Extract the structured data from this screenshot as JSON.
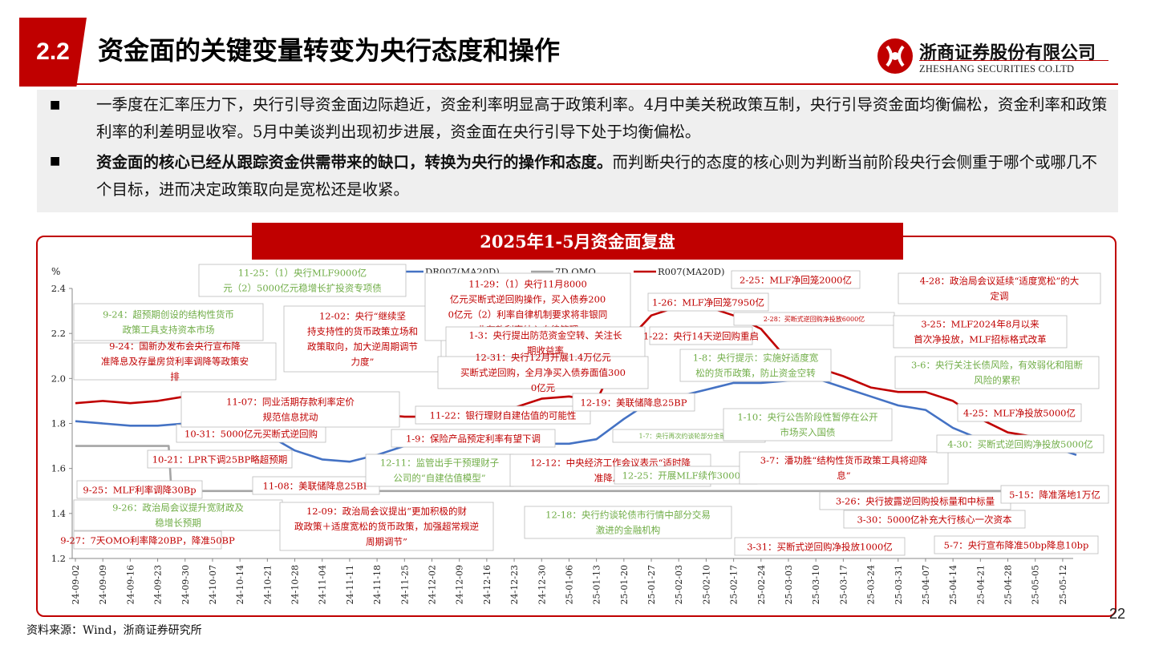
{
  "header": {
    "section_num": "2.2",
    "title": "资金面的关键变量转变为央行态度和操作"
  },
  "logo": {
    "cn": "浙商证券股份有限公司",
    "en": "ZHESHANG SECURITIES CO.LTD"
  },
  "bullets": [
    {
      "bold": "",
      "text": "一季度在汇率压力下，央行引导资金面边际趋近，资金利率明显高于政策利率。4月中美关税政策互制，央行引导资金面均衡偏松，资金利率和政策利率的利差明显收窄。5月中美谈判出现初步进展，资金面在央行引导下处于均衡偏松。"
    },
    {
      "bold": "资金面的核心已经从跟踪资金供需带来的缺口，转换为央行的操作和态度。",
      "text": "而判断央行的态度的核心则为判断当前阶段央行会侧重于哪个或哪几不个目标，进而决定政策取向是宽松还是收紧。"
    }
  ],
  "chart_title": "2025年1-5月资金面复盘",
  "colors": {
    "brand": "#c00000",
    "dr007": "#4472c4",
    "omo": "#a5a5a5",
    "r007": "#c00000",
    "green_text": "#70ad47"
  },
  "chart_data": {
    "type": "line",
    "ylabel": "%",
    "ylim": [
      1.2,
      2.4
    ],
    "yticks": [
      "1.2",
      "1.4",
      "1.6",
      "1.8",
      "2.0",
      "2.2",
      "2.4"
    ],
    "x_ticks": [
      "24-09-02",
      "24-09-09",
      "24-09-16",
      "24-09-23",
      "24-09-30",
      "24-10-07",
      "24-10-14",
      "24-10-21",
      "24-10-28",
      "24-11-04",
      "24-11-11",
      "24-11-18",
      "24-11-25",
      "24-12-02",
      "24-12-09",
      "24-12-16",
      "24-12-23",
      "24-12-30",
      "25-01-06",
      "25-01-13",
      "25-01-20",
      "25-01-27",
      "25-02-03",
      "25-02-10",
      "25-02-17",
      "25-02-24",
      "25-03-03",
      "25-03-10",
      "25-03-17",
      "25-03-24",
      "25-03-31",
      "25-04-07",
      "25-04-14",
      "25-04-21",
      "25-04-28",
      "25-05-05",
      "25-05-12"
    ],
    "legend": [
      "DR007(MA20D)",
      "7D OMO",
      "R007(MA20D)"
    ],
    "series": [
      {
        "name": "DR007(MA20D)",
        "points": [
          [
            0,
            1.81
          ],
          [
            1,
            1.8
          ],
          [
            2,
            1.79
          ],
          [
            3,
            1.79
          ],
          [
            4,
            1.8
          ],
          [
            5,
            1.81
          ],
          [
            6,
            1.8
          ],
          [
            7,
            1.75
          ],
          [
            8,
            1.68
          ],
          [
            9,
            1.64
          ],
          [
            10,
            1.63
          ],
          [
            11,
            1.66
          ],
          [
            12,
            1.7
          ],
          [
            13,
            1.73
          ],
          [
            14,
            1.73
          ],
          [
            15,
            1.72
          ],
          [
            16,
            1.7
          ],
          [
            17,
            1.71
          ],
          [
            18,
            1.71
          ],
          [
            19,
            1.73
          ],
          [
            20,
            1.82
          ],
          [
            21,
            1.9
          ],
          [
            22,
            1.92
          ],
          [
            23,
            1.95
          ],
          [
            24,
            1.98
          ],
          [
            25,
            1.98
          ],
          [
            26,
            1.99
          ],
          [
            27,
            2.0
          ],
          [
            28,
            1.96
          ],
          [
            29,
            1.92
          ],
          [
            30,
            1.88
          ],
          [
            31,
            1.86
          ],
          [
            32,
            1.78
          ],
          [
            33,
            1.73
          ],
          [
            34,
            1.72
          ],
          [
            35,
            1.7
          ],
          [
            36,
            1.68
          ],
          [
            36.5,
            1.66
          ]
        ]
      },
      {
        "name": "7D OMO",
        "points": [
          [
            0,
            1.7
          ],
          [
            3.4,
            1.7
          ],
          [
            3.5,
            1.5
          ],
          [
            36.9,
            1.5
          ]
        ]
      },
      {
        "name": "R007(MA20D)",
        "points": [
          [
            0,
            1.89
          ],
          [
            1,
            1.9
          ],
          [
            2,
            1.89
          ],
          [
            3,
            1.9
          ],
          [
            4,
            1.92
          ],
          [
            5,
            1.93
          ],
          [
            6,
            1.92
          ],
          [
            7,
            1.87
          ],
          [
            8,
            1.85
          ],
          [
            9,
            1.84
          ],
          [
            10,
            1.84
          ],
          [
            11,
            1.84
          ],
          [
            12,
            1.83
          ],
          [
            13,
            1.83
          ],
          [
            14,
            1.85
          ],
          [
            15,
            1.86
          ],
          [
            16,
            1.87
          ],
          [
            17,
            1.91
          ],
          [
            18,
            1.92
          ],
          [
            19,
            1.9
          ],
          [
            20,
            2.15
          ],
          [
            21,
            2.28
          ],
          [
            22,
            2.32
          ],
          [
            23,
            2.32
          ],
          [
            24,
            2.28
          ],
          [
            25,
            2.22
          ],
          [
            26,
            2.08
          ],
          [
            27,
            2.05
          ],
          [
            28,
            2.01
          ],
          [
            29,
            1.96
          ],
          [
            30,
            1.94
          ],
          [
            31,
            1.94
          ],
          [
            32,
            1.9
          ],
          [
            33,
            1.82
          ],
          [
            34,
            1.76
          ],
          [
            35,
            1.74
          ],
          [
            36,
            1.72
          ],
          [
            36.8,
            1.68
          ]
        ]
      }
    ],
    "annotations": [
      {
        "text": "9-24：超预期创设的结构性货币政策工具支持资本市场",
        "color": "#70ad47"
      },
      {
        "text": "9-24：国新办发布会央行宣布降准降息及存量房贷利率调降等政策安排",
        "color": "#c00000"
      },
      {
        "text": "9-25：MLF利率调降30Bp",
        "color": "#c00000"
      },
      {
        "text": "9-26：政治局会议提升宽财政及稳增长预期",
        "color": "#70ad47"
      },
      {
        "text": "9-27：7天OMO利率降20BP，降准50BP",
        "color": "#c00000"
      },
      {
        "text": "10-21：LPR下调25BP略超预期",
        "color": "#c00000"
      },
      {
        "text": "10-31：5000亿元买断式逆回购",
        "color": "#c00000"
      },
      {
        "text": "11-07：同业活期存款利率定价规范信息扰动",
        "color": "#c00000"
      },
      {
        "text": "11-08：美联储降息25BP",
        "color": "#c00000"
      },
      {
        "text": "11-25：（1）央行MLF9000亿元（2）5000亿元稳增长扩投资专项债",
        "color": "#70ad47"
      },
      {
        "text": "12-02：央行“继续坚持支持性的货币政策立场和政策取向，加大逆周期调节力度”",
        "color": "#c00000"
      },
      {
        "text": "12-09：政治局会议提出“更加积极的财政政策＋适度宽松的货币政策，加强超常规逆周期调节”",
        "color": "#c00000"
      },
      {
        "text": "11-29：（1）央行11月8000亿元买断式逆回购操作，买入债券2000亿元（2）利率自律机制要求将非银同业存款利率纳入自律管理",
        "color": "#c00000"
      },
      {
        "text": "1-3：央行提出防范资金空转、关注长期收益率",
        "color": "#c00000"
      },
      {
        "text": "12-31：央行12月开展1.4万亿元买断式逆回购，全月净买入债券面值3000亿元",
        "color": "#c00000"
      },
      {
        "text": "11-22：银行理财自建估值的可能性",
        "color": "#c00000"
      },
      {
        "text": "1-9：保险产品预定利率有望下调",
        "color": "#c00000"
      },
      {
        "text": "12-11：监管出手干预理财子公司的“自建估值模型”",
        "color": "#70ad47"
      },
      {
        "text": "12-12：中央经济工作会议表示“适时降准降息”",
        "color": "#c00000"
      },
      {
        "text": "12-18：央行约谈轮债市行情中部分交易激进的金融机构",
        "color": "#70ad47"
      },
      {
        "text": "12-19：美联储降息25BP",
        "color": "#c00000"
      },
      {
        "text": "1-7：央行再次约谈轮部分金融机构",
        "color": "#70ad47"
      },
      {
        "text": "12-25：开展MLF续作3000亿",
        "color": "#70ad47"
      },
      {
        "text": "1-26：MLF净回笼7950亿",
        "color": "#c00000"
      },
      {
        "text": "1-22：央行14天逆回购重启",
        "color": "#c00000"
      },
      {
        "text": "2-25：MLF净回笼2000亿",
        "color": "#c00000"
      },
      {
        "text": "2-28：买断式逆回购净投放6000亿",
        "color": "#c00000"
      },
      {
        "text": "1-8：央行提示：实施好适度宽松的货币政策，防止资金空转",
        "color": "#70ad47"
      },
      {
        "text": "1-10：央行公告阶段性暂停在公开市场买入国债",
        "color": "#70ad47"
      },
      {
        "text": "3-7：潘功胜“结构性货币政策工具将迎降息”",
        "color": "#c00000"
      },
      {
        "text": "3-31：买断式逆回购净投放1000亿",
        "color": "#c00000"
      },
      {
        "text": "4-28：政治局会议延续“适度宽松”的大定调",
        "color": "#c00000"
      },
      {
        "text": "3-25：MLF2024年8月以来首次净投放，MLF招标格式改革",
        "color": "#c00000"
      },
      {
        "text": "3-6：央行关注长债风险，有效弱化和阻断风险的累积",
        "color": "#70ad47"
      },
      {
        "text": "4-25：MLF净投放5000亿",
        "color": "#c00000"
      },
      {
        "text": "4-30：买断式逆回购净投放5000亿",
        "color": "#70ad47"
      },
      {
        "text": "3-26：央行披露逆回购投标量和中标量",
        "color": "#c00000"
      },
      {
        "text": "3-30：5000亿补充大行核心一次资本",
        "color": "#c00000"
      },
      {
        "text": "5-15：降准落地1万亿",
        "color": "#c00000"
      },
      {
        "text": "5-7：央行宣布降准50bp降息10bp",
        "color": "#c00000"
      }
    ]
  },
  "source": "资料来源：Wind，浙商证券研究所",
  "page_number": "22"
}
